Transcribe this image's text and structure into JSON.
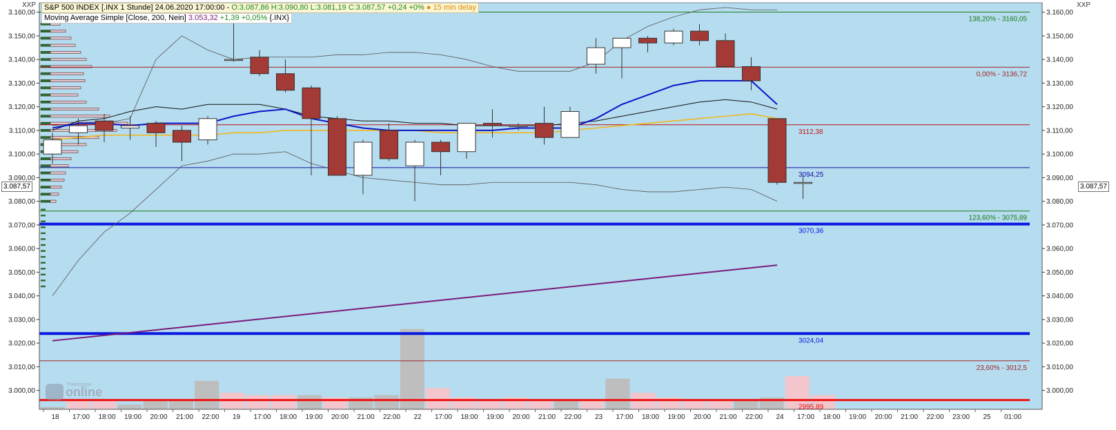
{
  "header": {
    "line1_main": "S&P 500 INDEX [.INX 1 Stunde] 24.06.2020 17:00:00 - ",
    "line1_ohlc": "O:3.087,86 H:3.090,80 L:3.081,19 C:3.087,57",
    "line1_change": "+0,24 +0%",
    "line1_delay": "● 15 min delay",
    "line2_main": "Moving Average Simple [Close, 200, Nein] ",
    "line2_value": "3.053,32",
    "line2_change": " +1,39 +0,05%",
    "line2_symbol": " {.INX}"
  },
  "corner_left": "XXP",
  "corner_right": "XXP",
  "current_price_label": "3.087,57",
  "watermark": "Tradesignal online",
  "colors": {
    "plot_bg": "#b6dcef",
    "bullish": "#ffffff",
    "bearish": "#a33a35",
    "ma_blue": "#0a14c8",
    "ma_black": "#111111",
    "ma_yellow": "#f0b81e",
    "ma200": "#7a1a7a",
    "band": "#555555"
  },
  "chart_data": {
    "type": "candlestick",
    "ylim": [
      2992,
      3164
    ],
    "y_ticks": [
      3000,
      3010,
      3020,
      3030,
      3040,
      3050,
      3060,
      3070,
      3080,
      3090,
      3100,
      3110,
      3120,
      3130,
      3140,
      3150,
      3160
    ],
    "y_tick_labels": [
      "3.000,00",
      "3.010,00",
      "3.020,00",
      "3.030,00",
      "3.040,00",
      "3.050,00",
      "3.060,00",
      "3.070,00",
      "3.080,00",
      "3.090,00",
      "3.100,00",
      "3.110,00",
      "3.120,00",
      "3.130,00",
      "3.140,00",
      "3.150,00",
      "3.160,00"
    ],
    "x_labels": [
      "18",
      "17:00",
      "18:00",
      "19:00",
      "20:00",
      "21:00",
      "22:00",
      "19",
      "17:00",
      "18:00",
      "19:00",
      "20:00",
      "21:00",
      "22:00",
      "22",
      "17:00",
      "18:00",
      "19:00",
      "20:00",
      "21:00",
      "22:00",
      "23",
      "17:00",
      "18:00",
      "19:00",
      "20:00",
      "21:00",
      "22:00",
      "24",
      "17:00",
      "18:00",
      "19:00",
      "20:00",
      "21:00",
      "22:00",
      "23:00",
      "25",
      "01:00"
    ],
    "candles": [
      {
        "o": 3100,
        "h": 3109,
        "l": 3096,
        "c": 3106
      },
      {
        "o": 3109,
        "h": 3115,
        "l": 3104,
        "c": 3112
      },
      {
        "o": 3114,
        "h": 3117,
        "l": 3105,
        "c": 3110
      },
      {
        "o": 3111,
        "h": 3116,
        "l": 3106,
        "c": 3112
      },
      {
        "o": 3113,
        "h": 3114,
        "l": 3103,
        "c": 3109
      },
      {
        "o": 3110,
        "h": 3112,
        "l": 3097,
        "c": 3105
      },
      {
        "o": 3106,
        "h": 3116,
        "l": 3104,
        "c": 3115
      },
      {
        "o": 3140,
        "h": 3156,
        "l": 3139,
        "c": 3140
      },
      {
        "o": 3141,
        "h": 3144,
        "l": 3133,
        "c": 3134
      },
      {
        "o": 3134,
        "h": 3140,
        "l": 3126,
        "c": 3127
      },
      {
        "o": 3128,
        "h": 3129,
        "l": 3091,
        "c": 3115
      },
      {
        "o": 3115,
        "h": 3116,
        "l": 3091,
        "c": 3091
      },
      {
        "o": 3091,
        "h": 3106,
        "l": 3083,
        "c": 3105
      },
      {
        "o": 3110,
        "h": 3113,
        "l": 3097,
        "c": 3098
      },
      {
        "o": 3095,
        "h": 3106,
        "l": 3080,
        "c": 3105
      },
      {
        "o": 3105,
        "h": 3106,
        "l": 3091,
        "c": 3101
      },
      {
        "o": 3101,
        "h": 3112,
        "l": 3098,
        "c": 3113
      },
      {
        "o": 3113,
        "h": 3119,
        "l": 3107,
        "c": 3112
      },
      {
        "o": 3112,
        "h": 3113,
        "l": 3110,
        "c": 3112
      },
      {
        "o": 3113,
        "h": 3120,
        "l": 3104,
        "c": 3107
      },
      {
        "o": 3107,
        "h": 3120,
        "l": 3107,
        "c": 3118
      },
      {
        "o": 3138,
        "h": 3149,
        "l": 3134,
        "c": 3145
      },
      {
        "o": 3145,
        "h": 3149,
        "l": 3132,
        "c": 3149
      },
      {
        "o": 3149,
        "h": 3150,
        "l": 3143,
        "c": 3147
      },
      {
        "o": 3147,
        "h": 3153,
        "l": 3146,
        "c": 3152
      },
      {
        "o": 3152,
        "h": 3155,
        "l": 3146,
        "c": 3148
      },
      {
        "o": 3148,
        "h": 3151,
        "l": 3137,
        "c": 3137
      },
      {
        "o": 3137,
        "h": 3141,
        "l": 3127,
        "c": 3131
      },
      {
        "o": 3115,
        "h": 3115,
        "l": 3087,
        "c": 3088
      },
      {
        "o": 3088,
        "h": 3091,
        "l": 3081,
        "c": 3088
      }
    ],
    "volume_tops": [
      2993,
      2996,
      2996,
      2994,
      2996,
      2996,
      3004,
      2999,
      2998,
      2998,
      2998,
      2997,
      2997,
      2998,
      3026,
      3001,
      2997,
      2996,
      2997,
      2996,
      2996,
      2996,
      3005,
      2999,
      2997,
      2996,
      2996,
      2996,
      2997,
      3006,
      2998
    ],
    "volume_colors": [
      "g",
      "p",
      "p",
      "g",
      "g",
      "g",
      "g",
      "p",
      "p",
      "p",
      "g",
      "p",
      "g",
      "g",
      "g",
      "p",
      "p",
      "p",
      "p",
      "p",
      "g",
      "p",
      "g",
      "p",
      "p",
      "p",
      "p",
      "g",
      "g",
      "p",
      "p"
    ],
    "ma_blue": [
      3111,
      3113,
      3113,
      3112,
      3113,
      3113,
      3113,
      3116,
      3118,
      3119,
      3115,
      3113,
      3111,
      3110,
      3110,
      3110,
      3110,
      3110,
      3111,
      3111,
      3111,
      3115,
      3121,
      3125,
      3129,
      3131,
      3131,
      3131,
      3121
    ],
    "ma_black": [
      3110,
      3114,
      3115,
      3118,
      3120,
      3119,
      3121,
      3121,
      3121,
      3119,
      3116,
      3115,
      3114,
      3114,
      3113,
      3113,
      3112,
      3112,
      3112,
      3112,
      3113,
      3114,
      3116,
      3118,
      3120,
      3122,
      3123,
      3122,
      3119
    ],
    "ma_yellow": [
      3106,
      3107,
      3108,
      3108,
      3108,
      3108,
      3108,
      3109,
      3109,
      3110,
      3110,
      3110,
      3110,
      3110,
      3110,
      3109,
      3109,
      3109,
      3109,
      3109,
      3110,
      3111,
      3112,
      3113,
      3114,
      3115,
      3116,
      3117,
      3115
    ],
    "band_upper": [
      3112,
      3113,
      3113,
      3115,
      3140,
      3150,
      3144,
      3140,
      3141,
      3141,
      3141,
      3142,
      3142,
      3143,
      3143,
      3142,
      3140,
      3137,
      3135,
      3135,
      3135,
      3139,
      3148,
      3154,
      3158,
      3161,
      3162,
      3161,
      3161
    ],
    "band_lower": [
      3040,
      3055,
      3067,
      3075,
      3085,
      3095,
      3097,
      3100,
      3100,
      3101,
      3096,
      3093,
      3090,
      3089,
      3088,
      3087,
      3087,
      3088,
      3088,
      3088,
      3088,
      3087,
      3085,
      3084,
      3084,
      3085,
      3086,
      3085,
      3080
    ],
    "ma200": [
      [
        0,
        3021
      ],
      [
        28,
        3053
      ]
    ],
    "horizontal_levels": [
      {
        "value": 3160.05,
        "label": "138,20% - 3160,05",
        "color": "#1a7a1a",
        "width": 1
      },
      {
        "value": 3136.72,
        "label": "0,00% - 3136,72",
        "color": "#a02828",
        "width": 1
      },
      {
        "value": 3112.38,
        "label": "3112,38",
        "color": "#c01010",
        "width": 1
      },
      {
        "value": 3094.25,
        "label": "3094,25",
        "color": "#1010a0",
        "width": 1
      },
      {
        "value": 3075.89,
        "label": "123,60% - 3075,89",
        "color": "#1a7a1a",
        "width": 1
      },
      {
        "value": 3070.36,
        "label": "3070,36",
        "color": "#0818e0",
        "width": 4
      },
      {
        "value": 3024.04,
        "label": "3024,04",
        "color": "#0818e0",
        "width": 4
      },
      {
        "value": 3012.5,
        "label": "23,60% - 3012,5",
        "color": "#a02828",
        "width": 1
      },
      {
        "value": 2995.89,
        "label": "2995,89",
        "color": "#ee1111",
        "width": 3
      }
    ],
    "volume_profile": [
      {
        "y": 3155,
        "len": 14
      },
      {
        "y": 3152,
        "len": 22
      },
      {
        "y": 3149,
        "len": 30
      },
      {
        "y": 3146,
        "len": 36
      },
      {
        "y": 3143,
        "len": 44
      },
      {
        "y": 3140,
        "len": 52
      },
      {
        "y": 3137,
        "len": 60
      },
      {
        "y": 3134,
        "len": 48
      },
      {
        "y": 3131,
        "len": 50
      },
      {
        "y": 3128,
        "len": 44
      },
      {
        "y": 3125,
        "len": 40
      },
      {
        "y": 3122,
        "len": 52
      },
      {
        "y": 3119,
        "len": 70
      },
      {
        "y": 3116,
        "len": 86
      },
      {
        "y": 3113,
        "len": 112
      },
      {
        "y": 3110,
        "len": 96
      },
      {
        "y": 3107,
        "len": 70
      },
      {
        "y": 3104,
        "len": 52
      },
      {
        "y": 3101,
        "len": 40
      },
      {
        "y": 3098,
        "len": 30
      },
      {
        "y": 3095,
        "len": 26
      },
      {
        "y": 3092,
        "len": 22
      },
      {
        "y": 3089,
        "len": 20
      },
      {
        "y": 3086,
        "len": 16
      },
      {
        "y": 3083,
        "len": 12
      },
      {
        "y": 3080,
        "len": 8
      }
    ]
  }
}
